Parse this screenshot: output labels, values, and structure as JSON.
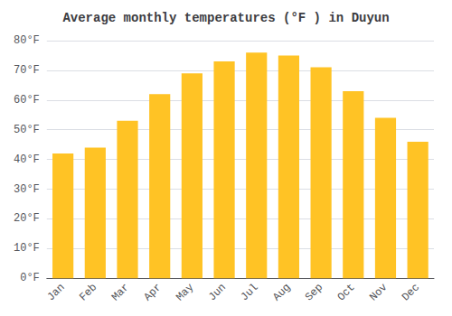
{
  "chart_data": {
    "type": "bar",
    "title": "Average monthly temperatures (°F ) in Duyun",
    "categories": [
      "Jan",
      "Feb",
      "Mar",
      "Apr",
      "May",
      "Jun",
      "Jul",
      "Aug",
      "Sep",
      "Oct",
      "Nov",
      "Dec"
    ],
    "values": [
      42,
      44,
      53,
      62,
      69,
      73,
      76,
      75,
      71,
      63,
      54,
      46
    ],
    "color": "#FFC325",
    "ylim": [
      0,
      80
    ],
    "yticks": [
      {
        "value": 0,
        "label": "0°F"
      },
      {
        "value": 10,
        "label": "10°F"
      },
      {
        "value": 20,
        "label": "20°F"
      },
      {
        "value": 30,
        "label": "30°F"
      },
      {
        "value": 40,
        "label": "40°F"
      },
      {
        "value": 50,
        "label": "50°F"
      },
      {
        "value": 60,
        "label": "60°F"
      },
      {
        "value": 70,
        "label": "70°F"
      },
      {
        "value": 80,
        "label": "80°F"
      }
    ],
    "grid": true
  }
}
